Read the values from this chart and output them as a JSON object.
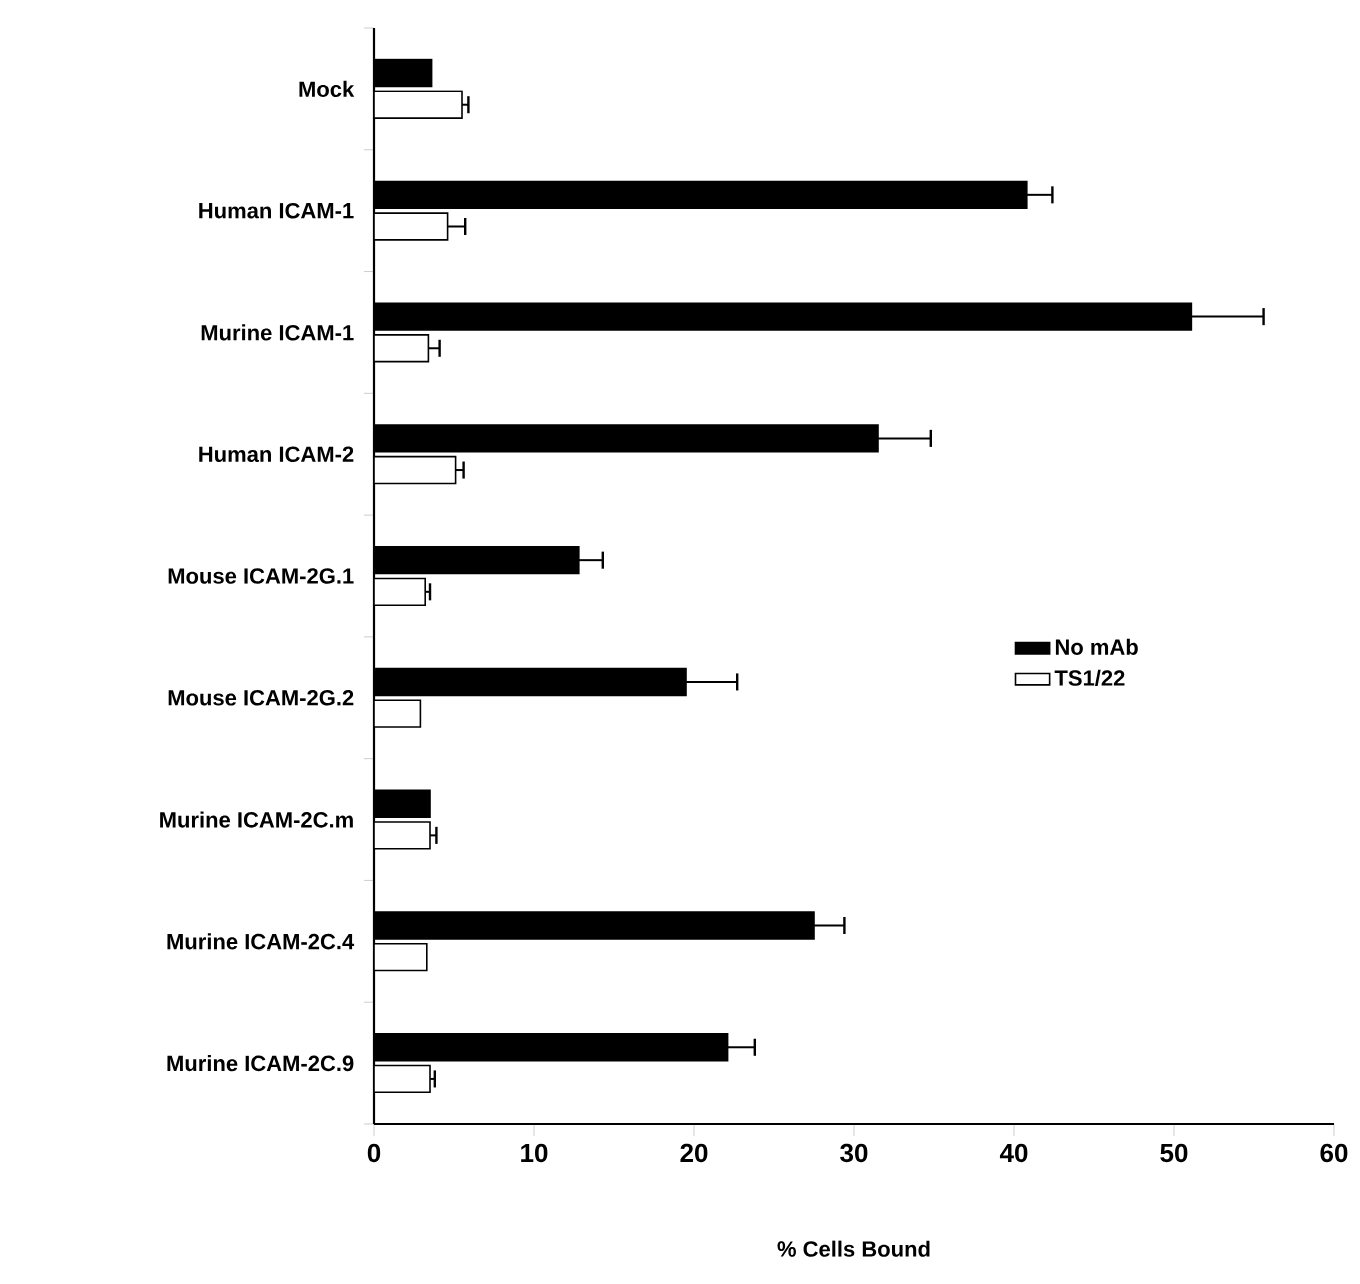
{
  "chart_data": {
    "type": "bar",
    "orientation": "horizontal",
    "xlabel": "% Cells Bound",
    "categories": [
      "Mock",
      "Human ICAM-1",
      "Murine ICAM-1",
      "Human ICAM-2",
      "Mouse ICAM-2G.1",
      "Mouse ICAM-2G.2",
      "Murine ICAM-2C.m",
      "Murine ICAM-2C.4",
      "Murine ICAM-2C.9"
    ],
    "series": [
      {
        "name": "No mAb",
        "color": "#000000",
        "values": [
          3.6,
          40.8,
          51.1,
          31.5,
          12.8,
          19.5,
          3.5,
          27.5,
          22.1
        ],
        "errors": [
          null,
          [
            40.8,
            42.4
          ],
          [
            51.1,
            55.6
          ],
          [
            31.5,
            34.8
          ],
          [
            12.8,
            14.3
          ],
          [
            19.5,
            22.7
          ],
          null,
          [
            27.5,
            29.4
          ],
          [
            22.1,
            23.8
          ]
        ]
      },
      {
        "name": "TS1/22",
        "color": "#000000",
        "values": [
          5.5,
          4.6,
          3.4,
          5.1,
          3.2,
          2.9,
          3.5,
          3.3,
          3.5
        ],
        "errors": [
          [
            5.5,
            5.9
          ],
          [
            4.6,
            5.7
          ],
          [
            3.4,
            4.1
          ],
          [
            5.1,
            5.6
          ],
          [
            3.2,
            3.5
          ],
          null,
          [
            3.5,
            3.9
          ],
          null,
          [
            3.5,
            3.8
          ]
        ]
      }
    ],
    "xlim": [
      0,
      60
    ],
    "xticks": [
      0,
      10,
      20,
      30,
      40,
      50,
      60
    ],
    "legend": "right",
    "grid": false
  }
}
